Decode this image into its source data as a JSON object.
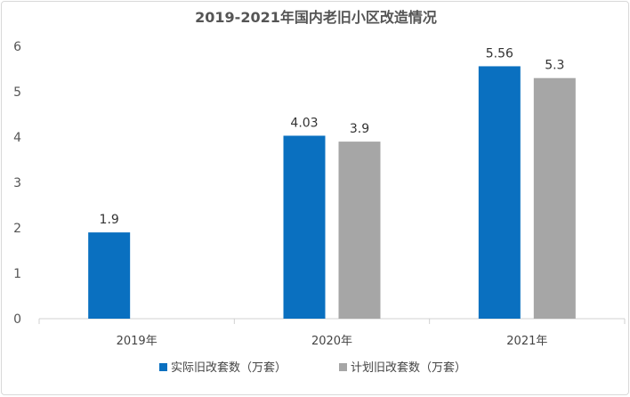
{
  "chart_data": {
    "type": "bar",
    "title": "2019-2021年国内老旧小区改造情况",
    "categories": [
      "2019年",
      "2020年",
      "2021年"
    ],
    "series": [
      {
        "name": "实际旧改套数（万套）",
        "values": [
          1.9,
          4.03,
          5.56
        ],
        "color": "#0a70c0"
      },
      {
        "name": "计划旧改套数（万套）",
        "values": [
          null,
          3.9,
          5.3
        ],
        "color": "#a6a6a6"
      }
    ],
    "ylim": [
      0,
      6
    ],
    "yticks": [
      0,
      1,
      2,
      3,
      4,
      5,
      6
    ],
    "data_labels": [
      [
        "1.9",
        "4.03",
        "5.56"
      ],
      [
        null,
        "3.9",
        "5.3"
      ]
    ],
    "grid": false,
    "legend_position": "bottom"
  }
}
